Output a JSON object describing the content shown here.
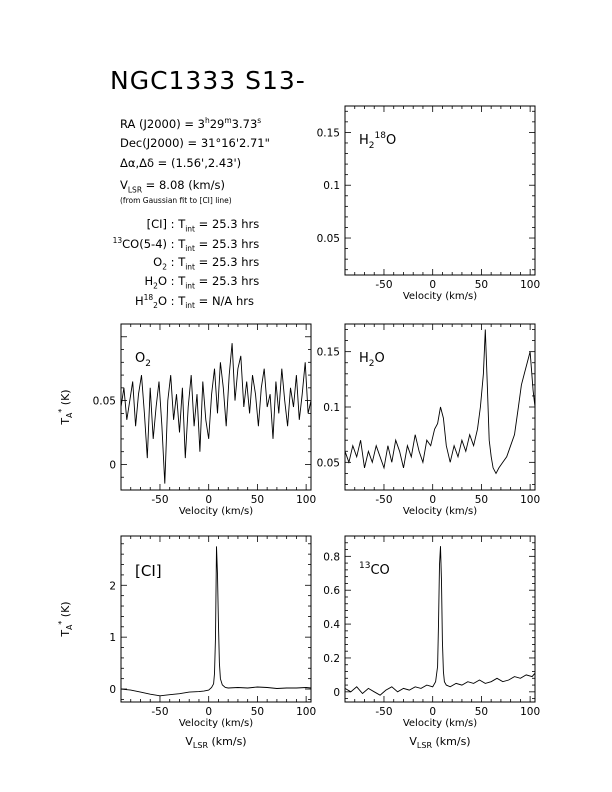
{
  "page": {
    "title": "NGC1333 S13-"
  },
  "info": {
    "ra_label": "RA (J2000) = ",
    "ra_h": "3",
    "ra_h_unit": "h",
    "ra_m": "29",
    "ra_m_unit": "m",
    "ra_s": "3.73",
    "ra_s_unit": "s",
    "dec_label": "Dec(J2000) = ",
    "dec_value": "31°16'2.71\"",
    "offset_label": "Δα,Δδ = ",
    "offset_value": "(1.56',2.43')",
    "vlsr_prefix": "V",
    "vlsr_sub": "LSR",
    "vlsr_value": " = 8.08 (km/s)",
    "vlsr_note": "(from Gaussian fit to [CI] line)",
    "t_prefix": "T",
    "t_sub": "int",
    "integrations": [
      {
        "pre": "",
        "sup": "",
        "mid": "[CI]",
        "sub": "",
        "post": "",
        "value": " = 25.3 hrs"
      },
      {
        "pre": "",
        "sup": "13",
        "mid": "CO(5-4)",
        "sub": "",
        "post": "",
        "value": " = 25.3 hrs"
      },
      {
        "pre": "",
        "sup": "",
        "mid": "O",
        "sub": "2",
        "post": "",
        "value": " = 25.3 hrs"
      },
      {
        "pre": "",
        "sup": "",
        "mid": "H",
        "sub": "2",
        "post": "O",
        "value": " = 25.3 hrs"
      },
      {
        "pre": "H",
        "sup": "18",
        "mid": "",
        "sub": "2",
        "post": "O",
        "value": " = N/A hrs"
      }
    ]
  },
  "chart_data": [
    {
      "type": "line",
      "panel": "h2-18o",
      "label": "H2 18O",
      "title": "",
      "xlabel": "Velocity (km/s)",
      "ylabel": "",
      "xlim": [
        -90,
        105
      ],
      "ylim": [
        0.015,
        0.175
      ],
      "xticks": [
        -50,
        0,
        50,
        100
      ],
      "yticks": [
        0.05,
        0.1,
        0.15
      ],
      "ytick_labels": [
        "0.05",
        "0.1",
        "0.15"
      ],
      "x": [],
      "y": []
    },
    {
      "type": "line",
      "panel": "o2",
      "label": "O2",
      "title": "",
      "xlabel": "Velocity (km/s)",
      "ylabel": "T_A* (K)",
      "xlim": [
        -90,
        105
      ],
      "ylim": [
        -0.02,
        0.11
      ],
      "xticks": [
        -50,
        0,
        50,
        100
      ],
      "yticks": [
        0,
        0.05
      ],
      "ytick_labels": [
        "0",
        "0.05"
      ],
      "x": [
        -90,
        -87,
        -84,
        -81,
        -78,
        -75,
        -72,
        -69,
        -66,
        -63,
        -60,
        -57,
        -54,
        -51,
        -48,
        -45,
        -42,
        -39,
        -36,
        -33,
        -30,
        -27,
        -24,
        -21,
        -18,
        -15,
        -12,
        -9,
        -6,
        -3,
        0,
        3,
        6,
        9,
        12,
        15,
        18,
        21,
        24,
        27,
        30,
        33,
        36,
        39,
        42,
        45,
        48,
        51,
        54,
        57,
        60,
        63,
        66,
        69,
        72,
        75,
        78,
        81,
        84,
        87,
        90,
        93,
        96,
        99,
        102,
        105
      ],
      "y": [
        0.045,
        0.06,
        0.035,
        0.05,
        0.065,
        0.03,
        0.055,
        0.07,
        0.04,
        0.005,
        0.06,
        0.02,
        0.045,
        0.065,
        0.03,
        -0.015,
        0.05,
        0.07,
        0.035,
        0.055,
        0.025,
        0.06,
        0.005,
        0.045,
        0.07,
        0.03,
        0.055,
        0.01,
        0.065,
        0.035,
        0.02,
        0.055,
        0.075,
        0.04,
        0.08,
        0.06,
        0.03,
        0.07,
        0.095,
        0.05,
        0.075,
        0.085,
        0.045,
        0.065,
        0.04,
        0.07,
        0.055,
        0.03,
        0.06,
        0.075,
        0.045,
        0.055,
        0.02,
        0.065,
        0.04,
        0.075,
        0.05,
        0.03,
        0.06,
        0.045,
        0.07,
        0.035,
        0.055,
        0.08,
        0.04,
        0.05
      ]
    },
    {
      "type": "line",
      "panel": "h2o",
      "label": "H2O",
      "title": "",
      "xlabel": "Velocity (km/s)",
      "ylabel": "",
      "xlim": [
        -90,
        105
      ],
      "ylim": [
        0.025,
        0.175
      ],
      "xticks": [
        -50,
        0,
        50,
        100
      ],
      "yticks": [
        0.05,
        0.1,
        0.15
      ],
      "ytick_labels": [
        "0.05",
        "0.1",
        "0.15"
      ],
      "x": [
        -90,
        -86,
        -82,
        -78,
        -74,
        -70,
        -66,
        -62,
        -58,
        -54,
        -50,
        -46,
        -42,
        -38,
        -34,
        -30,
        -26,
        -22,
        -18,
        -14,
        -10,
        -6,
        -2,
        2,
        5,
        8,
        11,
        14,
        18,
        22,
        26,
        30,
        34,
        38,
        42,
        46,
        49,
        52,
        54,
        56,
        58,
        60,
        62,
        65,
        68,
        72,
        76,
        80,
        84,
        88,
        91,
        94,
        97,
        100,
        103,
        105
      ],
      "y": [
        0.06,
        0.05,
        0.065,
        0.055,
        0.07,
        0.045,
        0.06,
        0.05,
        0.065,
        0.055,
        0.045,
        0.065,
        0.05,
        0.07,
        0.06,
        0.045,
        0.065,
        0.055,
        0.075,
        0.06,
        0.05,
        0.07,
        0.065,
        0.08,
        0.085,
        0.1,
        0.09,
        0.065,
        0.05,
        0.065,
        0.055,
        0.07,
        0.06,
        0.075,
        0.065,
        0.08,
        0.1,
        0.13,
        0.17,
        0.12,
        0.07,
        0.055,
        0.045,
        0.04,
        0.045,
        0.05,
        0.055,
        0.065,
        0.075,
        0.1,
        0.12,
        0.13,
        0.14,
        0.15,
        0.115,
        0.1
      ]
    },
    {
      "type": "line",
      "panel": "ci",
      "label": "[CI]",
      "title": "",
      "xlabel": "Velocity (km/s)",
      "ylabel": "T_A* (K)",
      "xlim": [
        -90,
        105
      ],
      "ylim": [
        -0.25,
        2.95
      ],
      "xticks": [
        -50,
        0,
        50,
        100
      ],
      "yticks": [
        0,
        1,
        2
      ],
      "ytick_labels": [
        "0",
        "1",
        "2"
      ],
      "x": [
        -90,
        -80,
        -70,
        -60,
        -50,
        -40,
        -30,
        -20,
        -10,
        -5,
        0,
        3,
        5,
        6,
        7,
        8,
        9,
        10,
        11,
        12,
        14,
        17,
        20,
        30,
        40,
        50,
        60,
        70,
        80,
        90,
        100,
        105
      ],
      "y": [
        0,
        -0.02,
        -0.06,
        -0.1,
        -0.13,
        -0.11,
        -0.09,
        -0.06,
        -0.05,
        -0.04,
        -0.02,
        0.03,
        0.1,
        0.3,
        1.0,
        2.75,
        2.2,
        1.3,
        0.5,
        0.2,
        0.08,
        0.03,
        0.02,
        0.03,
        0.02,
        0.04,
        0.03,
        0.01,
        0.02,
        0.02,
        0.03,
        0.02
      ]
    },
    {
      "type": "line",
      "panel": "13co",
      "label": "13CO",
      "title": "",
      "xlabel": "Velocity (km/s)",
      "ylabel": "",
      "xlim": [
        -90,
        105
      ],
      "ylim": [
        -0.06,
        0.92
      ],
      "xticks": [
        -50,
        0,
        50,
        100
      ],
      "yticks": [
        0,
        0.2,
        0.4,
        0.6,
        0.8
      ],
      "ytick_labels": [
        "0",
        "0.2",
        "0.4",
        "0.6",
        "0.8"
      ],
      "x": [
        -90,
        -84,
        -78,
        -72,
        -66,
        -60,
        -54,
        -48,
        -42,
        -36,
        -30,
        -24,
        -18,
        -12,
        -6,
        0,
        3,
        5,
        6,
        7,
        8,
        9,
        10,
        11,
        12,
        14,
        18,
        24,
        30,
        36,
        42,
        48,
        54,
        60,
        66,
        72,
        78,
        84,
        90,
        96,
        102,
        105
      ],
      "y": [
        0.02,
        0.0,
        0.03,
        -0.01,
        0.02,
        0.0,
        -0.02,
        0.01,
        0.03,
        0.0,
        0.02,
        0.01,
        0.03,
        0.02,
        0.04,
        0.03,
        0.06,
        0.15,
        0.4,
        0.75,
        0.86,
        0.65,
        0.3,
        0.12,
        0.06,
        0.04,
        0.03,
        0.05,
        0.04,
        0.06,
        0.05,
        0.07,
        0.05,
        0.06,
        0.08,
        0.06,
        0.07,
        0.09,
        0.08,
        0.1,
        0.09,
        0.11
      ]
    }
  ],
  "bottom_xlabel": {
    "prefix": "V",
    "sub": "LSR",
    "suffix": " (km/s)"
  }
}
